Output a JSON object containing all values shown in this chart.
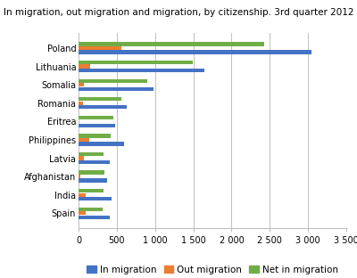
{
  "title": "In migration, out migration and migration, by citizenship. 3rd quarter 2012",
  "categories": [
    "Poland",
    "Lithuania",
    "Somalia",
    "Romania",
    "Eritrea",
    "Philippines",
    "Latvia",
    "Afghanistan",
    "India",
    "Spain"
  ],
  "in_migration": [
    3050,
    1650,
    980,
    630,
    480,
    600,
    410,
    370,
    430,
    410
  ],
  "out_migration": [
    560,
    150,
    65,
    55,
    0,
    140,
    70,
    25,
    90,
    95
  ],
  "net_migration": [
    2430,
    1490,
    900,
    560,
    460,
    420,
    330,
    340,
    330,
    310
  ],
  "colors": {
    "in_migration": "#4472c4",
    "out_migration": "#ed7d31",
    "net_migration": "#70ad47"
  },
  "xlim": [
    0,
    3500
  ],
  "xticks": [
    0,
    500,
    1000,
    1500,
    2000,
    2500,
    3000,
    3500
  ],
  "xtick_labels": [
    "0",
    "500",
    "1 000",
    "1 500",
    "2 000",
    "2 500",
    "3 000",
    "3 500"
  ],
  "bar_height": 0.22,
  "legend_labels": [
    "In migration",
    "Out migration",
    "Net in migration"
  ],
  "title_fontsize": 7.5,
  "tick_fontsize": 7,
  "legend_fontsize": 7.5,
  "background_color": "#ffffff",
  "grid_color": "#c0c0c0"
}
